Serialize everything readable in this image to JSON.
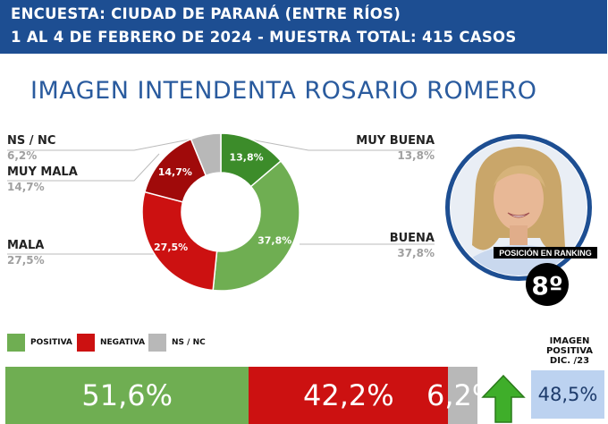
{
  "header": {
    "line1": "ENCUESTA: CIUDAD DE PARANÁ (ENTRE RÍOS)",
    "line2": "1 AL 4 DE FEBRERO DE 2024 - MUESTRA TOTAL: 415 CASOS"
  },
  "chart_data": {
    "type": "pie",
    "title": "IMAGEN INTENDENTA ROSARIO ROMERO",
    "slices": [
      {
        "name": "MUY BUENA",
        "value": 13.8,
        "label": "13,8%",
        "color": "#3c8c2a"
      },
      {
        "name": "BUENA",
        "value": 37.8,
        "label": "37,8%",
        "color": "#6fae52"
      },
      {
        "name": "MALA",
        "value": 27.5,
        "label": "27,5%",
        "color": "#cc1111"
      },
      {
        "name": "MUY MALA",
        "value": 14.7,
        "label": "14,7%",
        "color": "#a00a0a"
      },
      {
        "name": "NS / NC",
        "value": 6.2,
        "label": "6,2%",
        "color": "#b8b8b8"
      }
    ],
    "summary": [
      {
        "name": "POSITIVA",
        "value": 51.6,
        "label": "51,6%",
        "color": "#6fae52"
      },
      {
        "name": "NEGATIVA",
        "value": 42.2,
        "label": "42,2%",
        "color": "#cc1111"
      },
      {
        "name": "NS / NC",
        "value": 6.2,
        "label": "6,2%",
        "color": "#b8b8b8"
      }
    ]
  },
  "labels": {
    "ns_nc": {
      "name": "NS / NC",
      "value": "6,2%"
    },
    "muy_mala": {
      "name": "MUY MALA",
      "value": "14,7%"
    },
    "mala": {
      "name": "MALA",
      "value": "27,5%"
    },
    "muy_buena": {
      "name": "MUY BUENA",
      "value": "13,8%"
    },
    "buena": {
      "name": "BUENA",
      "value": "37,8%"
    }
  },
  "ranking": {
    "label": "POSICIÓN EN RANKING",
    "value": "8º"
  },
  "legend": {
    "positive": "POSITIVA",
    "negative": "NEGATIVA",
    "nsnc": "NS / NC"
  },
  "image_positive": {
    "label_l1": "IMAGEN",
    "label_l2": "POSITIVA",
    "label_l3": "DIC. /23",
    "value": "48,5%",
    "trend_icon": "arrow-up-icon"
  }
}
